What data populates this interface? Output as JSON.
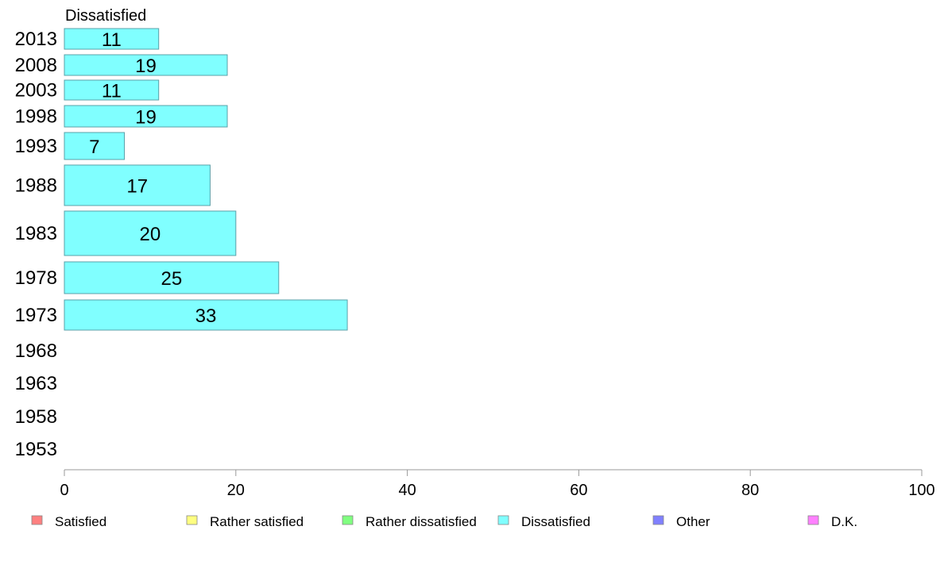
{
  "chart_data": {
    "type": "bar",
    "orientation": "horizontal",
    "series_name": "Dissatisfied",
    "series_color": "#80ffff",
    "categories": [
      "2013",
      "2008",
      "2003",
      "1998",
      "1993",
      "1988",
      "1983",
      "1978",
      "1973",
      "1968",
      "1963",
      "1958",
      "1953"
    ],
    "values": [
      11,
      19,
      11,
      19,
      7,
      17,
      20,
      25,
      33,
      null,
      null,
      null,
      null
    ],
    "value_labels": [
      "11",
      "19",
      "11",
      "19",
      "7",
      "17",
      "20",
      "25",
      "33",
      "",
      "",
      "",
      ""
    ],
    "xlim": [
      0,
      100
    ],
    "x_ticks": [
      "0",
      "20",
      "40",
      "60",
      "80",
      "100"
    ],
    "grid": false,
    "legend_position": "bottom",
    "legend": [
      {
        "label": "Satisfied",
        "color": "#ff8080"
      },
      {
        "label": "Rather satisfied",
        "color": "#ffff80"
      },
      {
        "label": "Rather dissatisfied",
        "color": "#80ff80"
      },
      {
        "label": "Dissatisfied",
        "color": "#80ffff"
      },
      {
        "label": "Other",
        "color": "#8080ff"
      },
      {
        "label": "D.K.",
        "color": "#ff80ff"
      }
    ]
  }
}
